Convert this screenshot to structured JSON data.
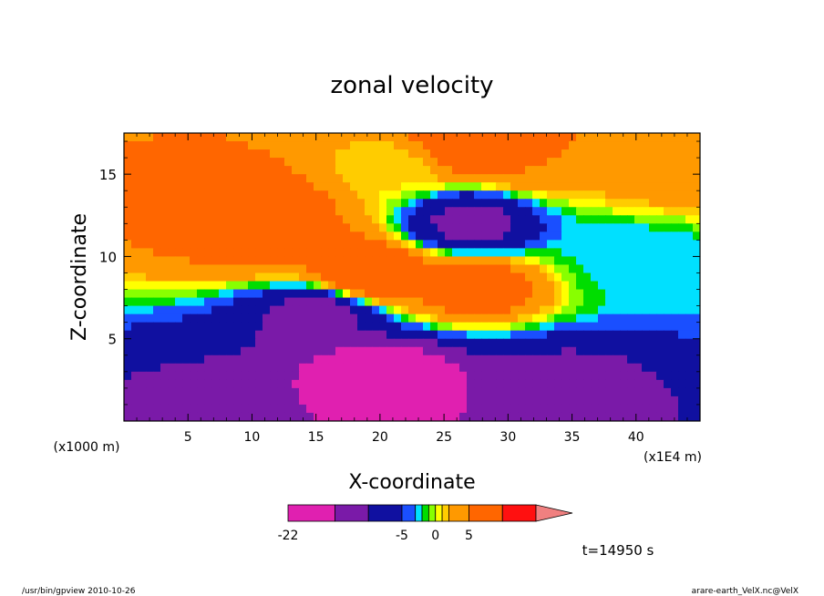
{
  "chart_data": {
    "type": "heatmap",
    "title": "zonal velocity",
    "xlabel": "X-coordinate",
    "ylabel": "Z-coordinate",
    "x_unit": "(x1E4 m)",
    "y_unit": "(x1000 m)",
    "x_ticks": [
      "5",
      "10",
      "15",
      "20",
      "25",
      "30",
      "35",
      "40"
    ],
    "y_ticks": [
      "5",
      "10",
      "15"
    ],
    "xlim": [
      0,
      45
    ],
    "ylim": [
      0,
      17.5
    ],
    "colorbar": {
      "tick_labels": [
        "-22",
        "-5",
        "0",
        "5"
      ],
      "levels": [
        -22,
        -15,
        -10,
        -5,
        -3,
        -2,
        -1,
        0,
        1,
        2,
        5,
        10,
        15
      ],
      "colors": [
        "#e020b0",
        "#7a1aa8",
        "#1010a0",
        "#1a4fff",
        "#00e0ff",
        "#00dd00",
        "#88ff00",
        "#ffff00",
        "#ffcc00",
        "#ff9900",
        "#ff6600",
        "#ff1010",
        "#f08080"
      ]
    },
    "features": [
      {
        "x": 10,
        "z": 12.5,
        "value": 10
      },
      {
        "x": 12,
        "z": 11,
        "value": 6
      },
      {
        "x": 19,
        "z": 9,
        "value": 10
      },
      {
        "x": 27,
        "z": 8.3,
        "value": 8
      },
      {
        "x": 27,
        "z": 16.8,
        "value": 10
      },
      {
        "x": 32,
        "z": 16,
        "value": 5
      },
      {
        "x": 27,
        "z": 12,
        "value": -12
      },
      {
        "x": 21,
        "z": 15.5,
        "value": 1
      },
      {
        "x": 15,
        "z": 6.5,
        "value": -12
      },
      {
        "x": 20,
        "z": 2.5,
        "value": -22
      },
      {
        "x": 34,
        "z": 2,
        "value": -12
      },
      {
        "x": 7,
        "z": 1,
        "value": -11
      },
      {
        "x": 40,
        "z": 10,
        "value": -3
      },
      {
        "x": 43,
        "z": 15,
        "value": 3
      }
    ]
  },
  "time_label": "t=14950 s",
  "footer_left": "/usr/bin/gpview   2010-10-26",
  "footer_right": "arare-earth_VelX.nc@VelX"
}
